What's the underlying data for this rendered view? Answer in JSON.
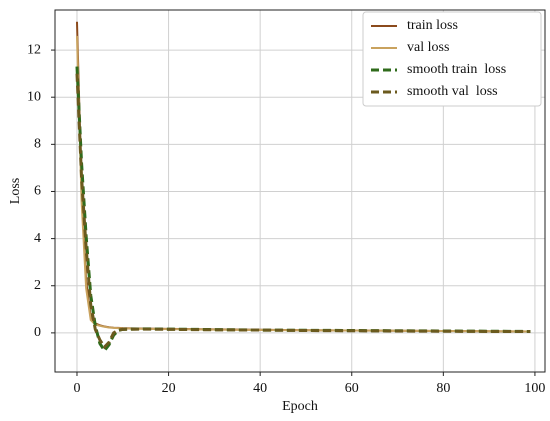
{
  "chart_data": {
    "type": "line",
    "xlabel": "Epoch",
    "ylabel": "Loss",
    "x": [
      0,
      1,
      2,
      3,
      4,
      5,
      6,
      7,
      8,
      9,
      10,
      15,
      20,
      30,
      40,
      50,
      60,
      70,
      80,
      90,
      99
    ],
    "series": [
      {
        "name": "train loss",
        "color": "#8b4a1c",
        "linestyle": "solid",
        "values": [
          13.2,
          6.2,
          2.2,
          0.7,
          0.4,
          0.32,
          0.27,
          0.24,
          0.22,
          0.21,
          0.2,
          0.18,
          0.17,
          0.15,
          0.13,
          0.11,
          0.1,
          0.09,
          0.08,
          0.07,
          0.06
        ]
      },
      {
        "name": "val loss",
        "color": "#c9a25e",
        "linestyle": "solid",
        "values": [
          12.6,
          5.6,
          1.9,
          0.55,
          0.35,
          0.3,
          0.26,
          0.23,
          0.21,
          0.2,
          0.19,
          0.17,
          0.16,
          0.14,
          0.12,
          0.11,
          0.1,
          0.09,
          0.08,
          0.07,
          0.06
        ]
      },
      {
        "name": "smooth train  loss",
        "color": "#2f6b1b",
        "linestyle": "dashed",
        "values": [
          11.3,
          7.2,
          4.1,
          1.6,
          0.3,
          -0.45,
          -0.75,
          -0.5,
          -0.1,
          0.1,
          0.15,
          0.17,
          0.16,
          0.14,
          0.12,
          0.11,
          0.1,
          0.09,
          0.08,
          0.07,
          0.06
        ]
      },
      {
        "name": "smooth val  loss",
        "color": "#6b5a1e",
        "linestyle": "dashed",
        "values": [
          11,
          6.6,
          3.6,
          1.2,
          0.15,
          -0.3,
          -0.6,
          -0.4,
          0,
          0.12,
          0.15,
          0.16,
          0.15,
          0.13,
          0.12,
          0.1,
          0.09,
          0.08,
          0.07,
          0.06,
          0.06
        ]
      }
    ],
    "xlim": [
      -4.8,
      102.2
    ],
    "ylim": [
      -1.66,
      13.7
    ],
    "xticks": [
      0,
      20,
      40,
      60,
      80,
      100
    ],
    "yticks": [
      0,
      2,
      4,
      6,
      8,
      10,
      12
    ],
    "grid": true,
    "legend": "upper right"
  }
}
